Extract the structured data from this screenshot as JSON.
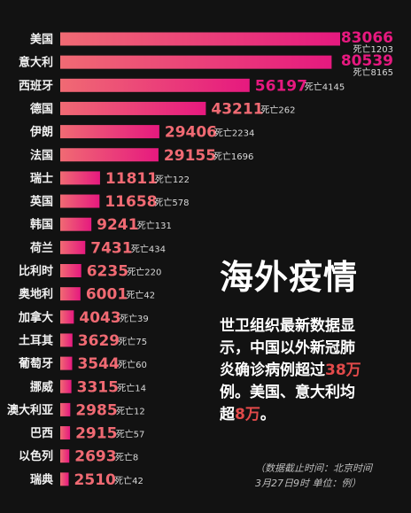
{
  "chart_data": {
    "type": "bar",
    "orientation": "horizontal",
    "categories": [
      "美国",
      "意大利",
      "西班牙",
      "德国",
      "伊朗",
      "法国",
      "瑞士",
      "英国",
      "韩国",
      "荷兰",
      "比利时",
      "奥地利",
      "加拿大",
      "土耳其",
      "葡萄牙",
      "挪威",
      "澳大利亚",
      "巴西",
      "以色列",
      "瑞典"
    ],
    "values": [
      83066,
      80539,
      56197,
      43211,
      29406,
      29155,
      11811,
      11658,
      9241,
      7431,
      6235,
      6001,
      4043,
      3629,
      3544,
      3315,
      2985,
      2915,
      2693,
      2510
    ],
    "deaths": [
      "死亡1203",
      "死亡8165",
      "死亡4145",
      "死亡262",
      "死亡2234",
      "死亡1696",
      "死亡122",
      "死亡578",
      "死亡131",
      "死亡434",
      "死亡220",
      "死亡42",
      "死亡39",
      "死亡75",
      "死亡60",
      "死亡14",
      "死亡12",
      "死亡57",
      "死亡8",
      "死亡42"
    ],
    "title": "海外疫情",
    "bar_gradient": [
      "#f06a73",
      "#e6197f"
    ],
    "value_colors": {
      "top": "#e6197f",
      "other": "#f06a73"
    }
  },
  "description": {
    "line1": "世卫组织最新数据显",
    "line2": "示，中国以外新冠肺",
    "line3a": "炎确诊病例超过",
    "line3b": "38万",
    "line4": "例。美国、意大利均",
    "line5a": "超",
    "line5b": "8万",
    "line5c": "。"
  },
  "note": {
    "line1": "（数据截止时间：北京时间",
    "line2": "3月27日9时  单位：例）"
  }
}
